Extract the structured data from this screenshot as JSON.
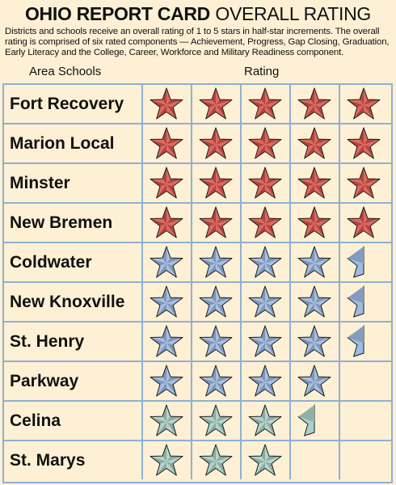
{
  "header": {
    "title_bold": "OHIO REPORT CARD",
    "title_light": "OVERALL RATING",
    "description": "Districts and schools receive an overall rating of 1 to 5 stars in half-star increments. The overall rating is comprised of six rated components — Achievement, Progress, Gap Closing, Graduation, Early Literacy and the College, Career, Workforce and Military Readiness component."
  },
  "columns": {
    "schools": "Area Schools",
    "rating": "Rating"
  },
  "colors": {
    "red": "#d9534a",
    "blue": "#9ab7df",
    "green": "#a9cfc7",
    "grid": "#8fb0d3",
    "background": "#fdf0d5"
  },
  "schools": [
    {
      "name": "Fort Recovery",
      "rating": 5,
      "color": "red"
    },
    {
      "name": "Marion Local",
      "rating": 5,
      "color": "red"
    },
    {
      "name": "Minster",
      "rating": 5,
      "color": "red"
    },
    {
      "name": "New Bremen",
      "rating": 5,
      "color": "red"
    },
    {
      "name": "Coldwater",
      "rating": 4.5,
      "color": "blue"
    },
    {
      "name": "New Knoxville",
      "rating": 4.5,
      "color": "blue"
    },
    {
      "name": "St. Henry",
      "rating": 4.5,
      "color": "blue"
    },
    {
      "name": "Parkway",
      "rating": 4,
      "color": "blue"
    },
    {
      "name": "Celina",
      "rating": 3.5,
      "color": "green"
    },
    {
      "name": "St. Marys",
      "rating": 3,
      "color": "green"
    }
  ]
}
